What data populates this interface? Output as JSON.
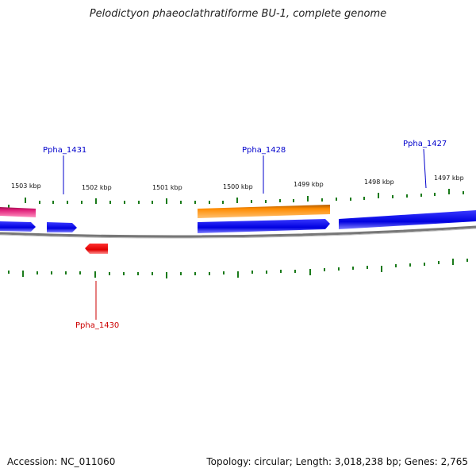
{
  "title": "Pelodictyon phaeoclathratiforme BU-1, complete genome",
  "footer": {
    "accession": "Accession: NC_011060",
    "summary": "Topology: circular; Length: 3,018,238 bp; Genes: 2,765"
  },
  "ruler": {
    "labels": [
      "1503 kbp",
      "1502 kbp",
      "1501 kbp",
      "1500 kbp",
      "1499 kbp",
      "1498 kbp",
      "1497 kbp"
    ],
    "tick_color": "#1a7a1a"
  },
  "gene_labels": [
    {
      "id": "Ppha_1431",
      "color": "#0000cc"
    },
    {
      "id": "Ppha_1428",
      "color": "#0000cc"
    },
    {
      "id": "Ppha_1427",
      "color": "#0000cc"
    },
    {
      "id": "Ppha_1430",
      "color": "#cc0000"
    }
  ],
  "colors": {
    "forward_cds": "#0000ee",
    "reverse_cds": "#ee0000",
    "highlight_orange": "#ff8c00",
    "highlight_pink": "#e0207a",
    "backbone": "#777777"
  }
}
